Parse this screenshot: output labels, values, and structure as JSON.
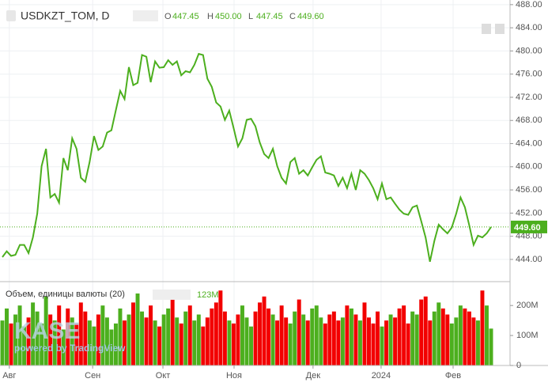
{
  "chart_data": [
    {
      "type": "line",
      "title": "USDKZT_TOM, D",
      "color": "#4caf1e",
      "ohlc": [
        {
          "key": "O",
          "value": "447.45"
        },
        {
          "key": "H",
          "value": "450.00"
        },
        {
          "key": "L",
          "value": "447.45"
        },
        {
          "key": "C",
          "value": "449.60"
        }
      ],
      "values": [
        444.4,
        445.4,
        444.6,
        444.8,
        446.5,
        446.5,
        445.1,
        447.8,
        451.9,
        460.1,
        463.1,
        454.7,
        455.3,
        453.8,
        461.5,
        459.4,
        464.9,
        463.1,
        458.1,
        457.4,
        460.8,
        465.3,
        462.9,
        463.5,
        465.9,
        466.3,
        469.7,
        473.1,
        471.7,
        477.2,
        474.1,
        474.5,
        479.3,
        479.0,
        474.6,
        478.2,
        477.1,
        477.2,
        478.4,
        477.6,
        478.2,
        475.8,
        476.5,
        476.3,
        477.6,
        479.5,
        479.3,
        475.2,
        473.8,
        471.1,
        470.4,
        468.1,
        469.7,
        466.7,
        463.5,
        464.9,
        468.1,
        468.3,
        467.0,
        464.2,
        462.2,
        461.5,
        463.1,
        460.1,
        458.1,
        457.1,
        460.8,
        461.5,
        458.8,
        459.4,
        458.5,
        459.9,
        461.2,
        461.8,
        459.0,
        458.8,
        458.5,
        456.7,
        458.1,
        456.3,
        458.8,
        456.0,
        459.4,
        458.8,
        457.7,
        456.3,
        454.4,
        457.1,
        454.4,
        454.7,
        453.6,
        452.6,
        451.9,
        451.7,
        453.0,
        453.3,
        450.6,
        447.8,
        443.6,
        447.2,
        450.0,
        449.2,
        448.5,
        449.5,
        451.9,
        454.7,
        453.0,
        449.9,
        446.5,
        448.1,
        447.8,
        448.5,
        449.6
      ],
      "last_label": "449.60",
      "ylim": [
        440.3,
        488.8
      ],
      "yticks": [
        {
          "value": 444,
          "label": "444.00"
        },
        {
          "value": 448,
          "label": "448.00"
        },
        {
          "value": 452,
          "label": "452.00"
        },
        {
          "value": 456,
          "label": "456.00"
        },
        {
          "value": 460,
          "label": "460.00"
        },
        {
          "value": 464,
          "label": "464.00"
        },
        {
          "value": 468,
          "label": "468.00"
        },
        {
          "value": 472,
          "label": "472.00"
        },
        {
          "value": 476,
          "label": "476.00"
        },
        {
          "value": 480,
          "label": "480.00"
        },
        {
          "value": 484,
          "label": "484.00"
        },
        {
          "value": 488,
          "label": "488.00"
        }
      ],
      "xlim": [
        -0.54,
        116.35
      ],
      "xticks": [
        {
          "value": 1.6,
          "label": "Авг"
        },
        {
          "value": 20.7,
          "label": "Сен"
        },
        {
          "value": 36.8,
          "label": "Окт"
        },
        {
          "value": 53.1,
          "label": "Ноя"
        },
        {
          "value": 71.2,
          "label": "Дек"
        },
        {
          "value": 86.8,
          "label": "2024"
        },
        {
          "value": 103.3,
          "label": "Фев"
        }
      ],
      "grid": true
    },
    {
      "type": "bar",
      "title": "Объем, единицы валюты (20)",
      "current_label": "123M",
      "up_color": "#4caf1e",
      "down_color": "#f20000",
      "values": [
        150,
        190,
        140,
        170,
        200,
        130,
        160,
        210,
        180,
        140,
        230,
        170,
        150,
        200,
        120,
        190,
        160,
        140,
        210,
        180,
        150,
        130,
        170,
        200,
        160,
        120,
        140,
        190,
        150,
        170,
        210,
        240,
        180,
        160,
        200,
        150,
        130,
        170,
        190,
        220,
        160,
        140,
        180,
        200,
        150,
        170,
        130,
        160,
        190,
        210,
        250,
        180,
        150,
        140,
        170,
        200,
        160,
        130,
        180,
        210,
        230,
        190,
        170,
        150,
        200,
        160,
        140,
        180,
        220,
        170,
        150,
        190,
        200,
        160,
        140,
        170,
        180,
        150,
        160,
        200,
        190,
        170,
        150,
        210,
        160,
        140,
        180,
        130,
        150,
        170,
        160,
        190,
        200,
        140,
        180,
        170,
        220,
        230,
        150,
        180,
        210,
        190,
        170,
        140,
        160,
        200,
        190,
        180,
        160,
        150,
        250,
        200,
        123
      ],
      "ylim": [
        0,
        277
      ],
      "yticks": [
        {
          "value": 200,
          "label": "200M"
        },
        {
          "value": 100,
          "label": "100M"
        },
        0
      ]
    }
  ],
  "watermark": {
    "logo": "KASE",
    "powered": "powered by TradingView"
  }
}
